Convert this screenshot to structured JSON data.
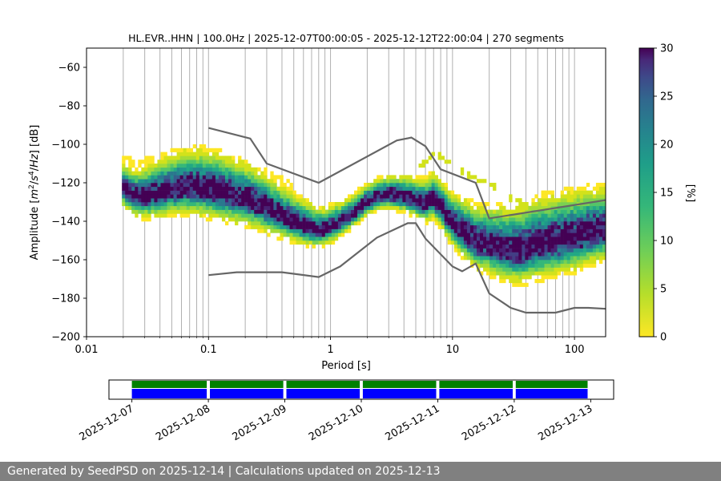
{
  "chart_data": [
    {
      "type": "heatmap",
      "title": "HL.EVR..HHN | 100.0Hz | 2025-12-07T00:00:05 - 2025-12-12T22:00:04 | 270 segments",
      "xlabel": "Period [s]",
      "ylabel_parts": [
        "Amplitude [",
        "m",
        "2",
        "/",
        "s",
        "4",
        "/",
        "Hz",
        "] [dB]"
      ],
      "xscale": "log",
      "xlim": [
        0.01,
        180
      ],
      "ylim": [
        -200,
        -50
      ],
      "x_ticks": [
        0.01,
        0.1,
        1,
        10,
        100
      ],
      "x_tick_labels": [
        "0.01",
        "0.1",
        "1",
        "10",
        "100"
      ],
      "y_ticks": [
        -200,
        -180,
        -160,
        -140,
        -120,
        -100,
        -80,
        -60
      ],
      "y_tick_labels": [
        "−200",
        "−180",
        "−160",
        "−140",
        "−120",
        "−100",
        "−80",
        "−60"
      ],
      "grid": "vertical",
      "colorbar": {
        "label": "[%]",
        "range": [
          0,
          30
        ],
        "ticks": [
          0,
          5,
          10,
          15,
          20,
          25,
          30
        ],
        "tick_labels": [
          "0",
          "5",
          "10",
          "15",
          "20",
          "25",
          "30"
        ],
        "colormap": "viridis-reversed"
      },
      "density_mode": {
        "period": [
          0.02,
          0.025,
          0.03,
          0.04,
          0.05,
          0.07,
          0.1,
          0.15,
          0.2,
          0.3,
          0.4,
          0.5,
          0.6,
          0.8,
          1,
          1.3,
          1.6,
          2,
          2.5,
          3,
          4,
          5,
          6,
          7,
          8,
          10,
          13,
          16,
          20,
          25,
          30,
          40,
          50,
          70,
          100,
          130,
          180
        ],
        "amplitude": [
          -123,
          -127,
          -127,
          -125,
          -123,
          -122,
          -123,
          -126,
          -128,
          -133,
          -137,
          -140,
          -142,
          -145,
          -143,
          -139,
          -135,
          -130,
          -127,
          -126,
          -127,
          -129,
          -131,
          -128,
          -133,
          -141,
          -147,
          -151,
          -152,
          -154,
          -155,
          -154,
          -152,
          -150,
          -148,
          -146,
          -144
        ]
      },
      "series": [
        {
          "name": "",
          "color": "#666666",
          "x": [
            0.1,
            0.22,
            0.3,
            0.8,
            3.5,
            4.6,
            6,
            8,
            15.5,
            20,
            180
          ],
          "y": [
            -91.5,
            -97,
            -110,
            -120,
            -98,
            -96.5,
            -101,
            -113,
            -120,
            -138.5,
            -129
          ]
        },
        {
          "name": "",
          "color": "#666666",
          "x": [
            0.1,
            0.17,
            0.4,
            0.8,
            1.2,
            2.4,
            4.3,
            5,
            6,
            10,
            12,
            15.5,
            20,
            30,
            40,
            50,
            70,
            100,
            130,
            180
          ],
          "y": [
            -168,
            -166.5,
            -166.5,
            -169,
            -163.5,
            -148.5,
            -141,
            -141,
            -149,
            -163.5,
            -166,
            -162,
            -177.5,
            -185,
            -187.5,
            -187.5,
            -187.5,
            -185,
            -185,
            -185.5
          ]
        }
      ]
    },
    {
      "type": "bar",
      "orientation": "timeline",
      "x_tick_labels": [
        "2025-12-07",
        "2025-12-08",
        "2025-12-09",
        "2025-12-10",
        "2025-12-11",
        "2025-12-12",
        "2025-12-13"
      ],
      "xlim_days": [
        -0.3,
        6.3
      ],
      "series": [
        {
          "name": "",
          "color": "#008000",
          "segments": [
            [
              0,
              0.98
            ],
            [
              1.02,
              1.98
            ],
            [
              2.02,
              2.98
            ],
            [
              3.02,
              3.98
            ],
            [
              4.02,
              4.98
            ],
            [
              5.02,
              5.96
            ]
          ]
        },
        {
          "name": "",
          "color": "#0000ff",
          "segments": [
            [
              0,
              0.98
            ],
            [
              1.02,
              1.98
            ],
            [
              2.02,
              2.98
            ],
            [
              3.02,
              3.98
            ],
            [
              4.02,
              4.98
            ],
            [
              5.02,
              5.96
            ]
          ]
        }
      ]
    }
  ],
  "footer": {
    "text": "Generated by SeedPSD on 2025-12-14 | Calculations updated on 2025-12-13"
  }
}
